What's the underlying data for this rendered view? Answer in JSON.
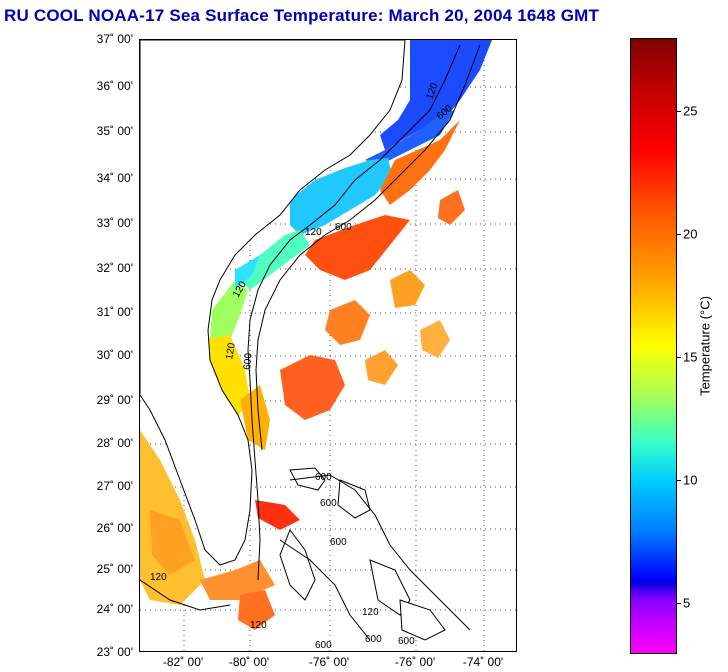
{
  "title": "RU COOL  NOAA-17  Sea Surface Temperature:  March 20, 2004 1648 GMT",
  "map": {
    "lat_labels": [
      "37˚ 00'",
      "36˚ 00'",
      "35˚ 00'",
      "34˚ 00'",
      "33˚ 00'",
      "32˚ 00'",
      "31˚ 00'",
      "30˚ 00'",
      "29˚ 00'",
      "28˚ 00'",
      "27˚ 00'",
      "26˚ 00'",
      "25˚ 00'",
      "24˚ 00'",
      "23˚ 00'"
    ],
    "lon_labels": [
      "-82˚ 00'",
      "-80˚ 00'",
      "-76˚ 00'",
      "-76˚ 00'",
      "-74˚ 00'"
    ],
    "contour_labels": [
      "120",
      "600"
    ]
  },
  "colorbar": {
    "title": "Temperature (°C)",
    "ticks": [
      "25",
      "20",
      "15",
      "10",
      "5"
    ],
    "colors": {
      "max": "#800000",
      "warm": "#ff0000",
      "mid": "#ffff00",
      "cool": "#00ccff",
      "cold": "#0000ff",
      "min": "#ff00ff"
    }
  }
}
